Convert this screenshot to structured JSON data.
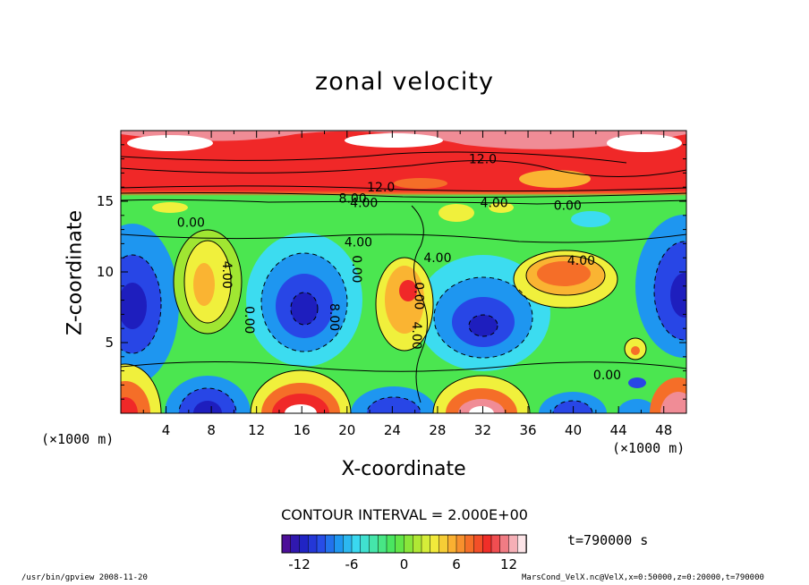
{
  "chart_data": {
    "type": "heatmap",
    "title": "zonal velocity",
    "xlabel": "X-coordinate",
    "ylabel": "Z-coordinate",
    "x_unit": "(×1000 m)",
    "y_unit": "(×1000 m)",
    "xlim": [
      0,
      50
    ],
    "ylim": [
      0,
      20
    ],
    "xticks": [
      4,
      8,
      12,
      16,
      20,
      24,
      28,
      32,
      36,
      40,
      44,
      48
    ],
    "yticks": [
      5,
      10,
      15
    ],
    "contour_interval_label": "CONTOUR INTERVAL = 2.000E+00",
    "contour_labels": [
      "12.0",
      "12.0",
      "8.00",
      "4.00",
      "4.00",
      "4.00",
      "0.00",
      "4.00",
      "4.00",
      "0.00",
      "8.00",
      "0.00",
      "4.00",
      "0.00",
      "0.00",
      "4.00",
      "0.00"
    ],
    "colorbar": {
      "min": -14,
      "max": 14,
      "ticks": [
        -12,
        -6,
        0,
        6,
        12
      ],
      "colors": [
        "#5a0a8c",
        "#1e1ebe",
        "#2846e6",
        "#1e96f0",
        "#3cdcf0",
        "#46e6a0",
        "#4be650",
        "#a0e632",
        "#f0f03c",
        "#fab432",
        "#f56e28",
        "#f02828",
        "#f08c96",
        "#ffffff"
      ]
    },
    "grid": false
  },
  "annotations": {
    "time": "t=790000 s",
    "footer_left": "/usr/bin/gpview  2008-11-20",
    "footer_right": "MarsCond_VelX.nc@VelX,x=0:50000,z=0:20000,t=790000"
  }
}
